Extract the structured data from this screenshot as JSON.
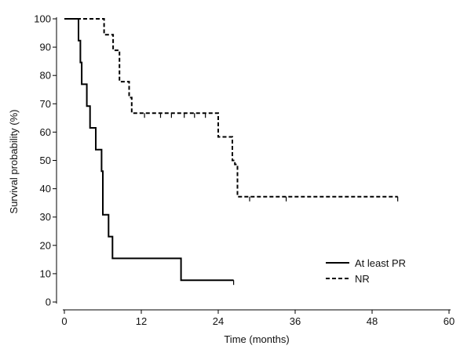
{
  "chart_data": {
    "type": "line",
    "subtype": "kaplan-meier-step",
    "title": "",
    "xlabel": "Time (months)",
    "ylabel": "Survival probability (%)",
    "xlim": [
      0,
      60
    ],
    "ylim": [
      0,
      100
    ],
    "xticks": [
      0,
      12,
      24,
      36,
      48,
      60
    ],
    "yticks": [
      0,
      10,
      20,
      30,
      40,
      50,
      60,
      70,
      80,
      90,
      100
    ],
    "grid": false,
    "legend_position": "bottom-right",
    "series": [
      {
        "name": "At least PR",
        "line_style": "solid",
        "color": "#000000",
        "steps": [
          [
            0,
            100
          ],
          [
            2.2,
            100
          ],
          [
            2.2,
            92.3
          ],
          [
            2.5,
            92.3
          ],
          [
            2.5,
            84.6
          ],
          [
            2.7,
            84.6
          ],
          [
            2.7,
            76.9
          ],
          [
            3.5,
            76.9
          ],
          [
            3.5,
            69.2
          ],
          [
            4.0,
            69.2
          ],
          [
            4.0,
            61.5
          ],
          [
            4.9,
            61.5
          ],
          [
            4.9,
            53.8
          ],
          [
            5.8,
            53.8
          ],
          [
            5.8,
            46.2
          ],
          [
            6.0,
            46.2
          ],
          [
            6.0,
            30.8
          ],
          [
            6.9,
            30.8
          ],
          [
            6.9,
            23.1
          ],
          [
            7.5,
            23.1
          ],
          [
            7.5,
            15.4
          ],
          [
            18.2,
            15.4
          ],
          [
            18.2,
            7.7
          ],
          [
            26.4,
            7.7
          ]
        ],
        "censored": [
          [
            26.4,
            7.7
          ]
        ]
      },
      {
        "name": "NR",
        "line_style": "dashed",
        "color": "#000000",
        "steps": [
          [
            0,
            100
          ],
          [
            6.2,
            100
          ],
          [
            6.2,
            94.4
          ],
          [
            7.6,
            94.4
          ],
          [
            7.6,
            88.9
          ],
          [
            8.6,
            88.9
          ],
          [
            8.6,
            77.8
          ],
          [
            10.1,
            77.8
          ],
          [
            10.1,
            72.2
          ],
          [
            10.5,
            72.2
          ],
          [
            10.5,
            66.7
          ],
          [
            24.0,
            66.7
          ],
          [
            24.0,
            58.3
          ],
          [
            26.2,
            58.3
          ],
          [
            26.2,
            50.0
          ],
          [
            26.6,
            50.0
          ],
          [
            26.6,
            48.6
          ],
          [
            27.0,
            48.6
          ],
          [
            27.0,
            37.2
          ],
          [
            52.0,
            37.2
          ]
        ],
        "censored": [
          [
            12.5,
            66.7
          ],
          [
            15.0,
            66.7
          ],
          [
            16.7,
            66.7
          ],
          [
            18.7,
            66.7
          ],
          [
            20.3,
            66.7
          ],
          [
            22.0,
            66.7
          ],
          [
            28.9,
            37.2
          ],
          [
            34.6,
            37.2
          ],
          [
            52.0,
            37.2
          ]
        ]
      }
    ]
  }
}
